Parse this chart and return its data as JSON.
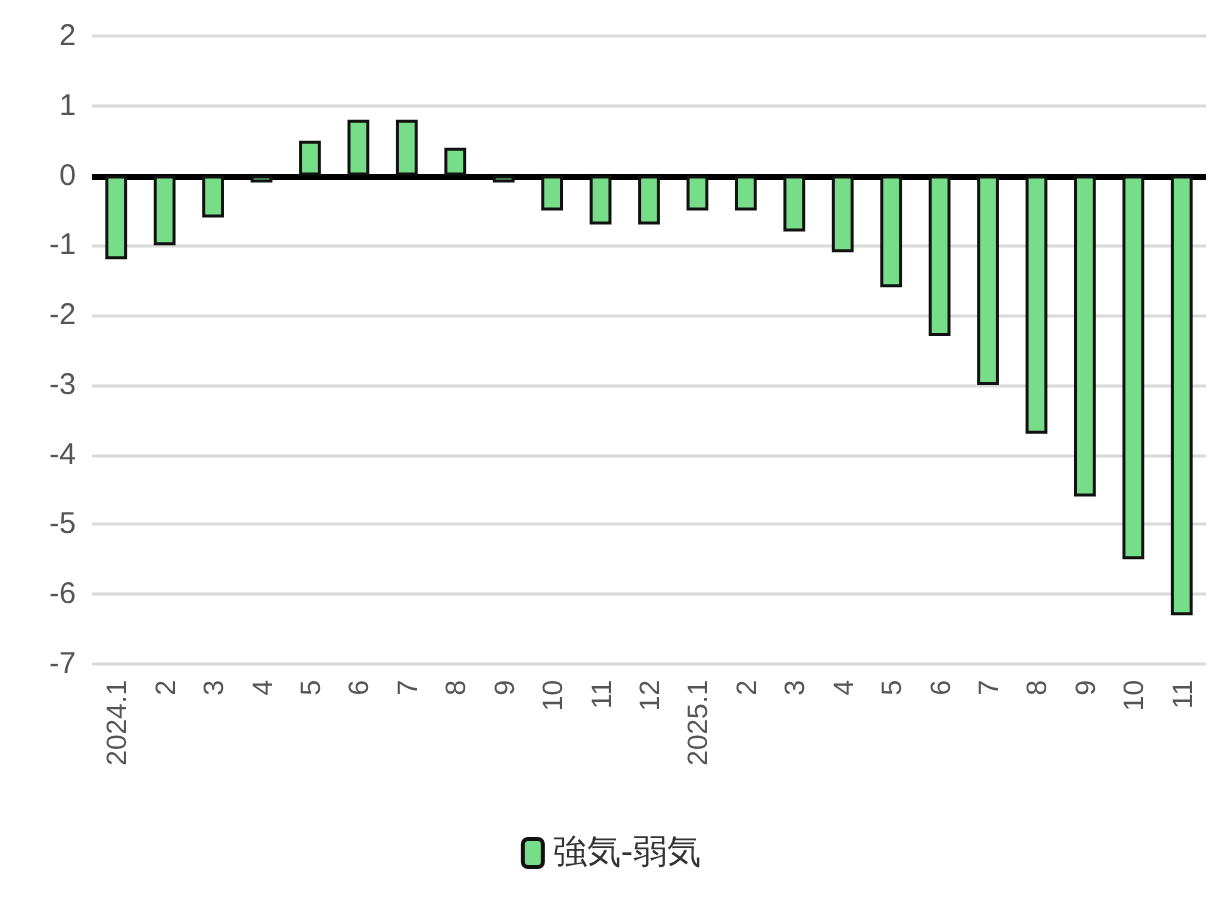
{
  "chart_data": {
    "type": "bar",
    "categories": [
      "2024.1",
      "2",
      "3",
      "4",
      "5",
      "6",
      "7",
      "8",
      "9",
      "10",
      "11",
      "12",
      "2025.1",
      "2",
      "3",
      "4",
      "5",
      "6",
      "7",
      "8",
      "9",
      "10",
      "11"
    ],
    "series": [
      {
        "name": "強気-弱気",
        "color": "#77dd88",
        "values": [
          -1.2,
          -1.0,
          -0.6,
          -0.1,
          0.5,
          0.8,
          0.8,
          0.4,
          -0.1,
          -0.5,
          -0.7,
          -0.7,
          -0.5,
          -0.5,
          -0.8,
          -1.1,
          -1.6,
          -2.3,
          -3.0,
          -3.7,
          -4.6,
          -5.5,
          -6.3
        ]
      }
    ],
    "ylim": [
      -7,
      2
    ],
    "yticks": [
      -7,
      -6,
      -5,
      -4,
      -3,
      -2,
      -1,
      0,
      1,
      2
    ],
    "grid": "y",
    "legend": "bottom"
  }
}
